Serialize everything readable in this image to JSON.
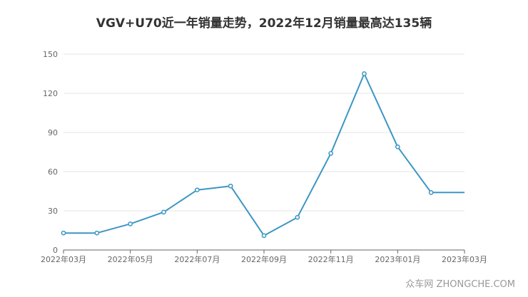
{
  "chart_data": {
    "type": "line",
    "title": "VGV+U70近一年销量走势，2022年12月销量最高达135辆",
    "x": [
      "2022年03月",
      "2022年04月",
      "2022年05月",
      "2022年06月",
      "2022年07月",
      "2022年08月",
      "2022年09月",
      "2022年10月",
      "2022年11月",
      "2022年12月",
      "2023年01月",
      "2023年02月",
      "2023年03月"
    ],
    "x_tick_labels": [
      "2022年03月",
      "2022年05月",
      "2022年07月",
      "2022年09月",
      "2022年11月",
      "2023年01月",
      "2023年03月"
    ],
    "series": [
      {
        "values": [
          13,
          13,
          20,
          29,
          46,
          49,
          11,
          25,
          74,
          135,
          79,
          44,
          44
        ]
      }
    ],
    "ylim": [
      0,
      150
    ],
    "y_ticks": [
      0,
      30,
      60,
      90,
      120,
      150
    ],
    "grid": true,
    "colors": {
      "line": "#3c96c4",
      "grid": "#e6e6e6",
      "axis": "#666666",
      "marker_fill": "#ffffff"
    }
  },
  "watermark": "众车网 ZHONGCHE.COM"
}
